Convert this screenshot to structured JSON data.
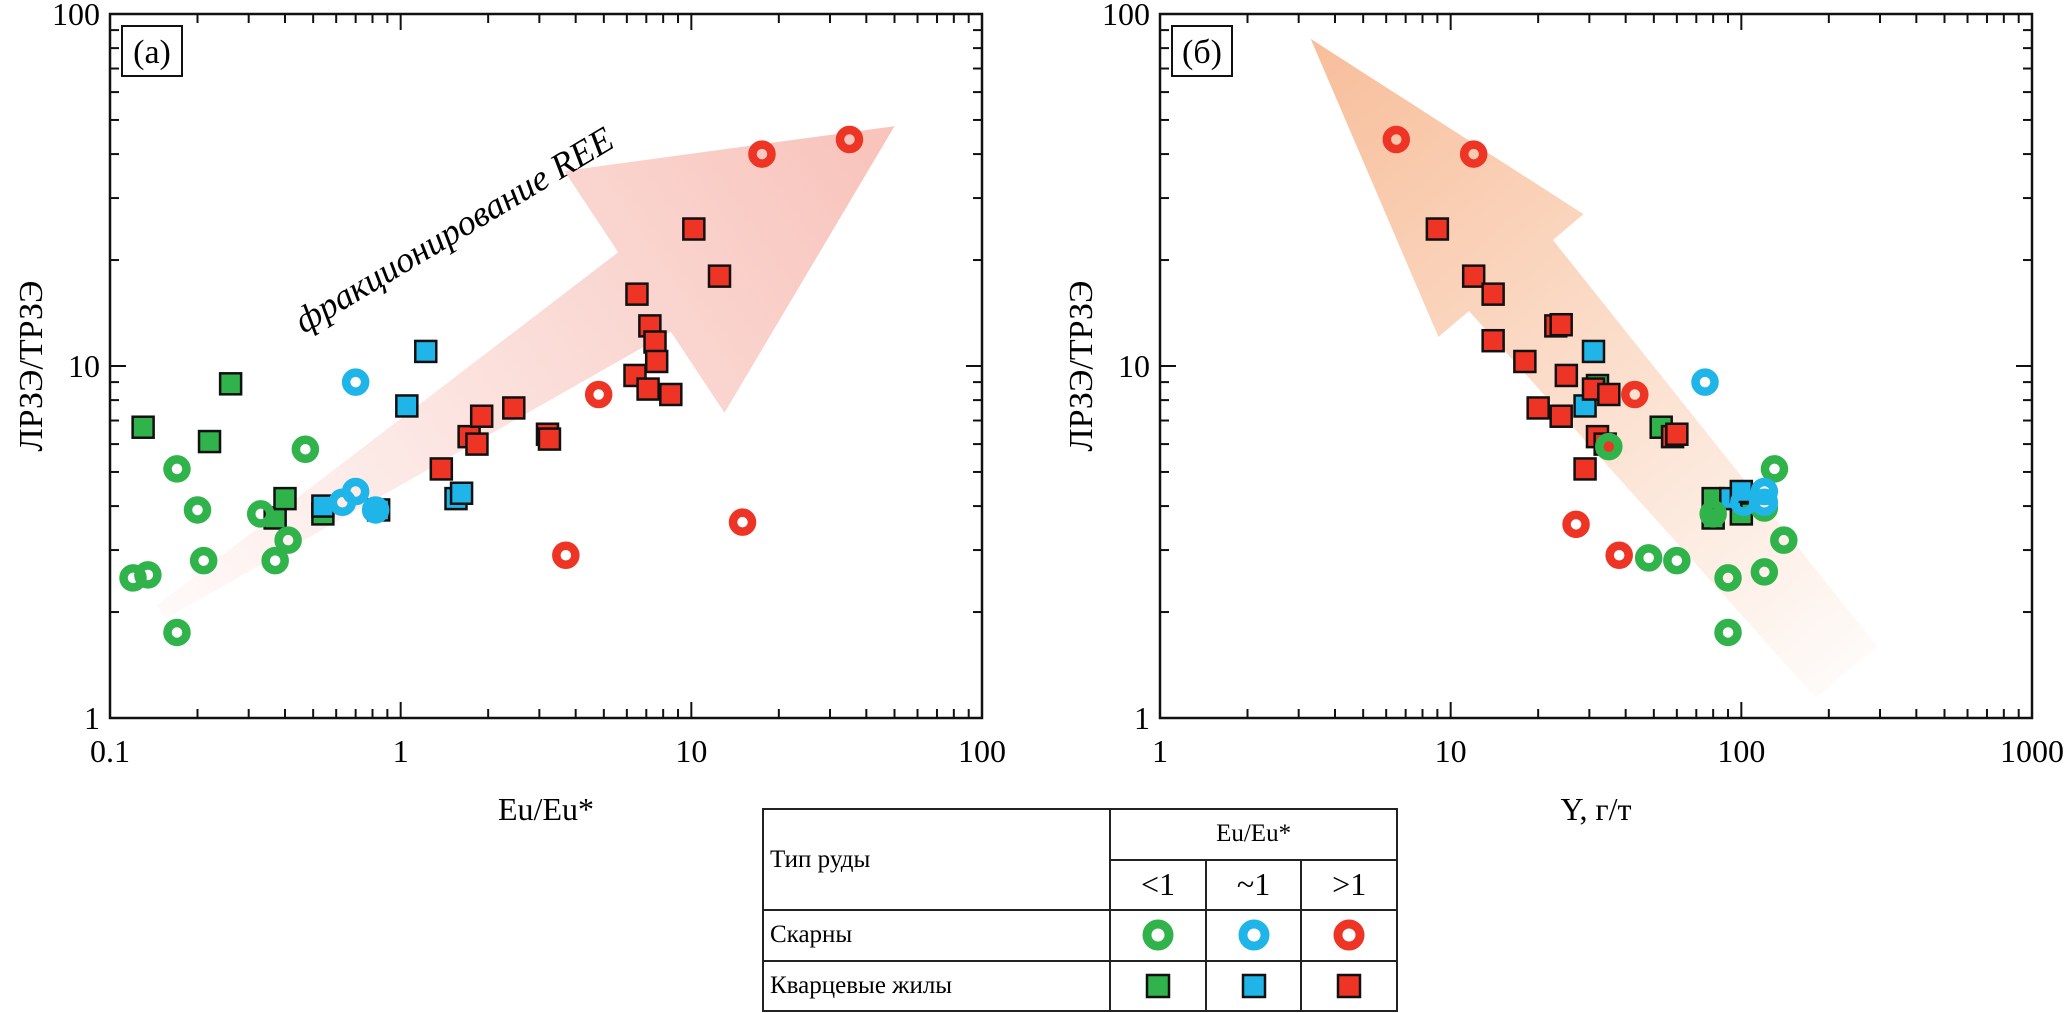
{
  "colors": {
    "green": "#2fb34a",
    "blue": "#1fb5e8",
    "red": "#ee3424",
    "arrow_a": "#f39a8c",
    "arrow_b": "#f5a878"
  },
  "icons": {
    "skarn": "ring-marker-icon",
    "vein": "square-marker-icon"
  },
  "legend": {
    "header_type": "Тип руды",
    "header_ratio": "Eu/Eu*",
    "cols": [
      "<1",
      "~1",
      ">1"
    ],
    "rows": [
      "Скарны",
      "Кварцевые жилы"
    ]
  },
  "chart_data": [
    {
      "type": "scatter",
      "panel_label": "(а)",
      "xlabel": "Eu/Eu*",
      "ylabel": "ЛРЗЭ/ТРЗЭ",
      "xscale": "log",
      "yscale": "log",
      "xlim": [
        0.1,
        100
      ],
      "ylim": [
        1,
        100
      ],
      "xticks": [
        0.1,
        1,
        10,
        100
      ],
      "xtick_labels": [
        "0.1",
        "1",
        "10",
        "100"
      ],
      "yticks": [
        1,
        10,
        100
      ],
      "ytick_labels": [
        "1",
        "10",
        "100"
      ],
      "annotation": "фракционирование REE",
      "trend_arrow": {
        "from": [
          0.15,
          2.0
        ],
        "to": [
          50,
          48
        ]
      },
      "series": [
        {
          "name": "Скарны Eu/Eu* <1",
          "marker": "ring",
          "color": "green",
          "points": [
            [
              0.12,
              2.5
            ],
            [
              0.135,
              2.55
            ],
            [
              0.17,
              5.1
            ],
            [
              0.17,
              1.75
            ],
            [
              0.2,
              3.9
            ],
            [
              0.21,
              2.8
            ],
            [
              0.33,
              3.8
            ],
            [
              0.37,
              2.8
            ],
            [
              0.41,
              3.2
            ],
            [
              0.47,
              5.8
            ]
          ]
        },
        {
          "name": "Скарны Eu/Eu* ~1",
          "marker": "ring",
          "color": "blue",
          "points": [
            [
              0.63,
              4.1
            ],
            [
              0.7,
              4.4
            ],
            [
              0.7,
              9.0
            ],
            [
              0.82,
              3.9
            ]
          ]
        },
        {
          "name": "Скарны Eu/Eu* >1",
          "marker": "ring",
          "color": "red",
          "points": [
            [
              3.7,
              2.9
            ],
            [
              4.8,
              8.3
            ],
            [
              15,
              3.6
            ],
            [
              17.5,
              40
            ],
            [
              35,
              44
            ]
          ]
        },
        {
          "name": "Кварцевые жилы Eu/Eu* <1",
          "marker": "square",
          "color": "green",
          "points": [
            [
              0.13,
              6.7
            ],
            [
              0.22,
              6.1
            ],
            [
              0.26,
              8.9
            ],
            [
              0.37,
              3.7
            ],
            [
              0.4,
              4.2
            ],
            [
              0.54,
              3.8
            ]
          ]
        },
        {
          "name": "Кварцевые жилы Eu/Eu* ~1",
          "marker": "square",
          "color": "blue",
          "points": [
            [
              0.54,
              4.0
            ],
            [
              0.84,
              3.9
            ],
            [
              1.05,
              7.7
            ],
            [
              1.22,
              11
            ],
            [
              1.55,
              4.2
            ],
            [
              1.62,
              4.35
            ]
          ]
        },
        {
          "name": "Кварцевые жилы Eu/Eu* >1",
          "marker": "square",
          "color": "red",
          "points": [
            [
              1.38,
              5.1
            ],
            [
              1.72,
              6.3
            ],
            [
              1.83,
              6.0
            ],
            [
              1.9,
              7.2
            ],
            [
              2.45,
              7.6
            ],
            [
              3.2,
              6.4
            ],
            [
              3.25,
              6.2
            ],
            [
              6.4,
              9.4
            ],
            [
              6.5,
              16
            ],
            [
              7.1,
              8.6
            ],
            [
              7.2,
              13
            ],
            [
              7.5,
              11.7
            ],
            [
              7.6,
              10.3
            ],
            [
              8.5,
              8.3
            ],
            [
              10.2,
              24.5
            ],
            [
              12.5,
              18
            ]
          ]
        }
      ]
    },
    {
      "type": "scatter",
      "panel_label": "(б)",
      "xlabel": "Y, г/т",
      "ylabel": "ЛРЗЭ/ТРЗЭ",
      "xscale": "log",
      "yscale": "log",
      "xlim": [
        1,
        1000
      ],
      "ylim": [
        1,
        100
      ],
      "xticks": [
        1,
        10,
        100,
        1000
      ],
      "xtick_labels": [
        "1",
        "10",
        "100",
        "1000"
      ],
      "yticks": [
        1,
        10,
        100
      ],
      "ytick_labels": [
        "1",
        "10",
        "100"
      ],
      "trend_arrow": {
        "from": [
          3.3,
          85
        ],
        "to": [
          230,
          1.35
        ]
      },
      "series": [
        {
          "name": "Скарны Eu/Eu* <1",
          "marker": "ring",
          "color": "green",
          "points": [
            [
              35,
              5.9
            ],
            [
              48,
              2.85
            ],
            [
              60,
              2.8
            ],
            [
              80,
              3.8
            ],
            [
              90,
              2.5
            ],
            [
              90,
              1.75
            ],
            [
              120,
              2.6
            ],
            [
              120,
              3.95
            ],
            [
              130,
              5.1
            ],
            [
              140,
              3.2
            ]
          ]
        },
        {
          "name": "Скарны Eu/Eu* ~1",
          "marker": "ring",
          "color": "blue",
          "points": [
            [
              75,
              9.0
            ],
            [
              102,
              4.1
            ],
            [
              120,
              4.4
            ],
            [
              120,
              4.1
            ]
          ]
        },
        {
          "name": "Скарны Eu/Eu* >1",
          "marker": "ring",
          "color": "red",
          "points": [
            [
              6.5,
              44
            ],
            [
              12,
              40
            ],
            [
              27,
              3.55
            ],
            [
              38,
              2.9
            ],
            [
              43,
              8.3
            ]
          ]
        },
        {
          "name": "Кварцевые жилы Eu/Eu* <1",
          "marker": "square",
          "color": "green",
          "points": [
            [
              32,
              8.8
            ],
            [
              53,
              6.7
            ],
            [
              80,
              4.2
            ],
            [
              80,
              3.7
            ],
            [
              100,
              3.8
            ]
          ]
        },
        {
          "name": "Кварцевые жилы Eu/Eu* ~1",
          "marker": "square",
          "color": "blue",
          "points": [
            [
              29,
              7.7
            ],
            [
              31,
              11
            ],
            [
              92,
              4.2
            ],
            [
              100,
              4.4
            ]
          ]
        },
        {
          "name": "Кварцевые жилы Eu/Eu* >1",
          "marker": "square",
          "color": "red",
          "points": [
            [
              9,
              24.5
            ],
            [
              12,
              18
            ],
            [
              14,
              16
            ],
            [
              14,
              11.8
            ],
            [
              18,
              10.3
            ],
            [
              20,
              7.6
            ],
            [
              23,
              13
            ],
            [
              24,
              13.1
            ],
            [
              24,
              7.2
            ],
            [
              25,
              9.4
            ],
            [
              29,
              5.1
            ],
            [
              31,
              8.6
            ],
            [
              32,
              6.3
            ],
            [
              34,
              6.0
            ],
            [
              35,
              8.3
            ],
            [
              58,
              6.3
            ],
            [
              60,
              6.4
            ]
          ]
        }
      ]
    }
  ]
}
